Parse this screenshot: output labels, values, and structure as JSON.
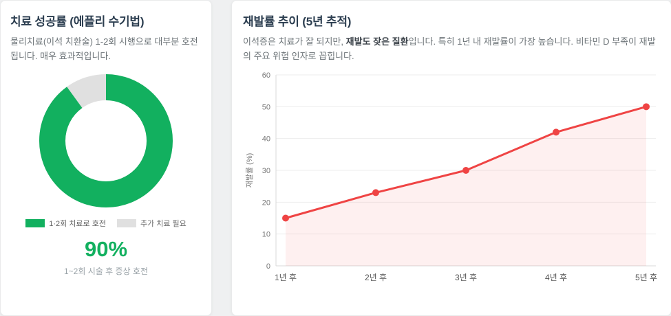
{
  "left_panel": {
    "title": "치료 성공률 (에플리 수기법)",
    "description": "물리치료(이석 치환술) 1-2회 시행으로 대부분 호전됩니다. 매우 효과적입니다.",
    "big_value": "90%",
    "caption": "1~2회 시술 후 증상 호전"
  },
  "right_panel": {
    "title": "재발률 추이 (5년 추적)",
    "desc_pre": "이석증은 치료가 잘 되지만, ",
    "desc_bold": "재발도 잦은 질환",
    "desc_post": "입니다. 특히 1년 내 재발률이 가장 높습니다. 비타민 D 부족이 재발의 주요 위험 인자로 꼽힙니다."
  },
  "chart_data": [
    {
      "type": "pie",
      "donut": true,
      "title": "치료 성공률 (에플리 수기법)",
      "labels": [
        "1·2회 치료로 호전",
        "추가 치료 필요"
      ],
      "values": [
        90,
        10
      ],
      "colors": [
        "#12b05f",
        "#e0e0e0"
      ],
      "legend_position": "bottom"
    },
    {
      "type": "line",
      "title": "재발률 추이 (5년 추적)",
      "categories": [
        "1년 후",
        "2년 후",
        "3년 후",
        "4년 후",
        "5년 후"
      ],
      "values": [
        15,
        23,
        30,
        42,
        50
      ],
      "xlabel": "",
      "ylabel": "재발률 (%)",
      "ylim": [
        0,
        60
      ],
      "yticks": [
        0,
        10,
        20,
        30,
        40,
        50,
        60
      ],
      "grid": true,
      "legend": false,
      "area": true,
      "line_color": "#ef4444",
      "point_color": "#ef4444",
      "fill_color": "rgba(239,68,68,0.08)"
    }
  ]
}
